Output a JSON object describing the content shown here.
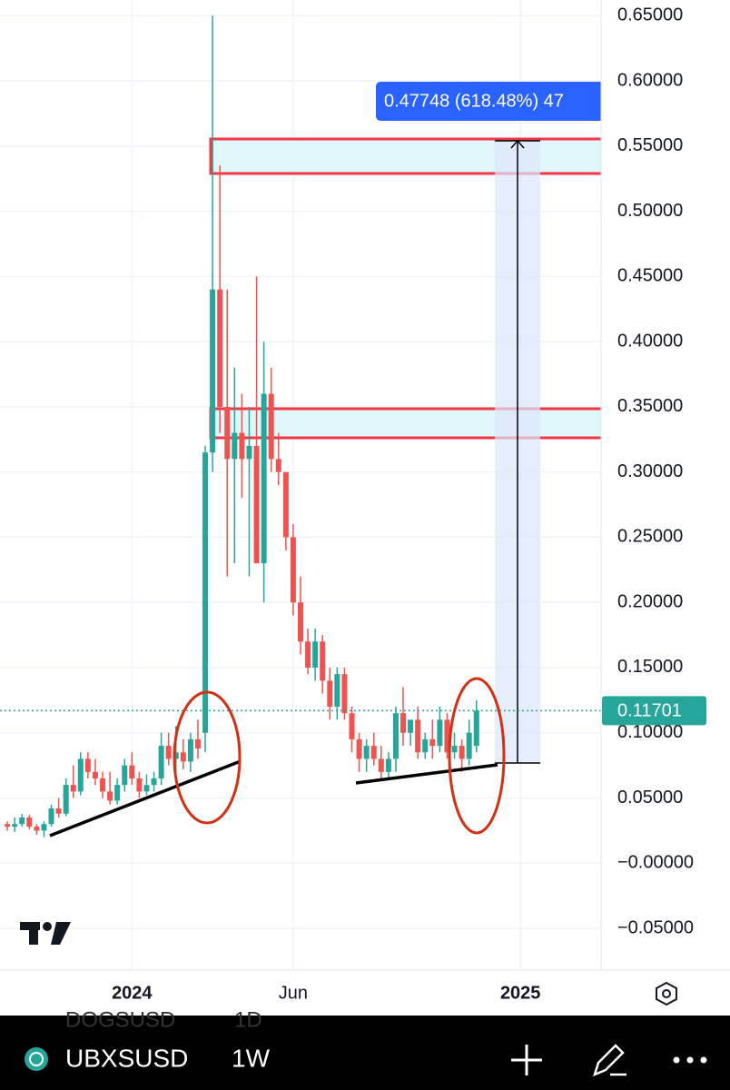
{
  "chart_data": {
    "type": "candlestick",
    "up_color": "#26a69a",
    "down_color": "#ef5350",
    "grid": true,
    "xlim": [
      0,
      82
    ],
    "xticks": [
      {
        "value": 18,
        "label": "2024"
      },
      {
        "value": 40,
        "label": "Jun"
      },
      {
        "value": 71,
        "label": "2025"
      }
    ],
    "ylim": [
      -0.082,
      0.662
    ],
    "yticks": [
      {
        "value": 0.65,
        "label": "0.65000"
      },
      {
        "value": 0.6,
        "label": "0.60000"
      },
      {
        "value": 0.55,
        "label": "0.55000"
      },
      {
        "value": 0.5,
        "label": "0.50000"
      },
      {
        "value": 0.45,
        "label": "0.45000"
      },
      {
        "value": 0.4,
        "label": "0.40000"
      },
      {
        "value": 0.35,
        "label": "0.35000"
      },
      {
        "value": 0.3,
        "label": "0.30000"
      },
      {
        "value": 0.25,
        "label": "0.25000"
      },
      {
        "value": 0.2,
        "label": "0.20000"
      },
      {
        "value": 0.15,
        "label": "0.15000"
      },
      {
        "value": 0.1,
        "label": "0.10000"
      },
      {
        "value": 0.05,
        "label": "0.05000"
      },
      {
        "value": 0,
        "label": "−0.00000"
      },
      {
        "value": -0.05,
        "label": "−0.05000"
      }
    ],
    "x": [
      1,
      2,
      3,
      4,
      5,
      6,
      7,
      8,
      9,
      10,
      11,
      12,
      13,
      14,
      15,
      16,
      17,
      18,
      19,
      20,
      21,
      22,
      23,
      24,
      25,
      26,
      27,
      28,
      29,
      30,
      31,
      32,
      33,
      34,
      35,
      36,
      37,
      38,
      39,
      40,
      41,
      42,
      43,
      44,
      45,
      46,
      47,
      48,
      49,
      50,
      51,
      52,
      53,
      54,
      55,
      56,
      57,
      58,
      59,
      60,
      61,
      62,
      63,
      64,
      65
    ],
    "open": [
      0.03,
      0.028,
      0.03,
      0.035,
      0.028,
      0.025,
      0.03,
      0.042,
      0.038,
      0.06,
      0.055,
      0.08,
      0.07,
      0.065,
      0.055,
      0.048,
      0.06,
      0.075,
      0.065,
      0.055,
      0.06,
      0.065,
      0.09,
      0.08,
      0.085,
      0.078,
      0.095,
      0.1,
      0.315,
      0.44,
      0.35,
      0.31,
      0.33,
      0.31,
      0.32,
      0.23,
      0.36,
      0.31,
      0.3,
      0.25,
      0.2,
      0.17,
      0.15,
      0.17,
      0.14,
      0.12,
      0.145,
      0.115,
      0.095,
      0.08,
      0.09,
      0.08,
      0.07,
      0.08,
      0.115,
      0.1,
      0.11,
      0.085,
      0.095,
      0.09,
      0.11,
      0.085,
      0.09,
      0.08,
      0.09
    ],
    "high": [
      0.032,
      0.035,
      0.038,
      0.037,
      0.03,
      0.032,
      0.045,
      0.05,
      0.065,
      0.075,
      0.085,
      0.085,
      0.08,
      0.07,
      0.07,
      0.065,
      0.08,
      0.085,
      0.07,
      0.068,
      0.07,
      0.1,
      0.1,
      0.105,
      0.095,
      0.1,
      0.11,
      0.32,
      0.65,
      0.535,
      0.44,
      0.38,
      0.36,
      0.35,
      0.45,
      0.4,
      0.38,
      0.33,
      0.3,
      0.26,
      0.22,
      0.18,
      0.18,
      0.175,
      0.15,
      0.15,
      0.15,
      0.12,
      0.1,
      0.095,
      0.1,
      0.09,
      0.085,
      0.12,
      0.135,
      0.11,
      0.12,
      0.1,
      0.11,
      0.12,
      0.115,
      0.1,
      0.095,
      0.11,
      0.125
    ],
    "low": [
      0.025,
      0.024,
      0.028,
      0.026,
      0.022,
      0.02,
      0.028,
      0.035,
      0.036,
      0.05,
      0.052,
      0.065,
      0.06,
      0.05,
      0.045,
      0.045,
      0.055,
      0.06,
      0.05,
      0.052,
      0.055,
      0.06,
      0.075,
      0.07,
      0.072,
      0.07,
      0.08,
      0.085,
      0.3,
      0.33,
      0.22,
      0.23,
      0.28,
      0.22,
      0.23,
      0.2,
      0.3,
      0.29,
      0.24,
      0.19,
      0.16,
      0.145,
      0.14,
      0.13,
      0.11,
      0.11,
      0.11,
      0.085,
      0.07,
      0.07,
      0.075,
      0.065,
      0.065,
      0.07,
      0.09,
      0.09,
      0.08,
      0.08,
      0.08,
      0.085,
      0.08,
      0.08,
      0.07,
      0.075,
      0.085
    ],
    "close": [
      0.028,
      0.03,
      0.035,
      0.028,
      0.025,
      0.03,
      0.042,
      0.038,
      0.06,
      0.055,
      0.08,
      0.07,
      0.065,
      0.055,
      0.048,
      0.06,
      0.075,
      0.065,
      0.055,
      0.06,
      0.065,
      0.09,
      0.08,
      0.085,
      0.078,
      0.095,
      0.088,
      0.315,
      0.44,
      0.35,
      0.31,
      0.33,
      0.31,
      0.32,
      0.23,
      0.36,
      0.31,
      0.3,
      0.25,
      0.2,
      0.17,
      0.15,
      0.17,
      0.14,
      0.12,
      0.145,
      0.115,
      0.095,
      0.08,
      0.09,
      0.08,
      0.07,
      0.08,
      0.115,
      0.1,
      0.11,
      0.085,
      0.095,
      0.09,
      0.11,
      0.085,
      0.09,
      0.08,
      0.1,
      0.117
    ],
    "last_price": 0.11701,
    "measure_label": "0.47748 (618.48%) 47"
  },
  "toolbar": {
    "symbol": "UBXSUSD",
    "interval": "1W",
    "ghost_symbol": "DOGSUSD",
    "ghost_interval": "1D"
  }
}
